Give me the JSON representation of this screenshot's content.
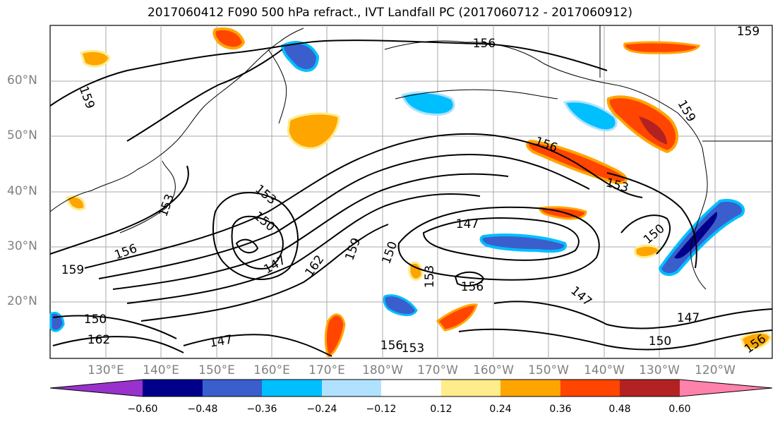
{
  "title": "2017060412 F090 500 hPa refract., IVT Landfall PC (2017060712 - 2017060912)",
  "lat_labels": [
    "60°N",
    "50°N",
    "40°N",
    "30°N",
    "20°N"
  ],
  "lon_labels": [
    "130°E",
    "140°E",
    "150°E",
    "160°E",
    "170°E",
    "180°W",
    "170°W",
    "160°W",
    "150°W",
    "140°W",
    "130°W",
    "120°W"
  ],
  "contour_labels": [
    "159",
    "156",
    "153",
    "150",
    "147",
    "162",
    "159",
    "153",
    "150",
    "147",
    "156",
    "159",
    "156",
    "150",
    "147",
    "153",
    "162",
    "150",
    "156",
    "147",
    "153",
    "156",
    "159",
    "147",
    "150",
    "156",
    "159",
    "153"
  ],
  "colorbar": {
    "tick_labels": [
      "−0.60",
      "−0.48",
      "−0.36",
      "−0.24",
      "−0.12",
      "0.12",
      "0.24",
      "0.36",
      "0.48",
      "0.60"
    ],
    "colors": [
      "#9932CC",
      "#00008B",
      "#3A5FCD",
      "#00BFFF",
      "#B0E2FF",
      "#FFFFFF",
      "#FFEC8B",
      "#FFA500",
      "#FF4500",
      "#B22222",
      "#FF82AB"
    ]
  },
  "map_style": {
    "ocean": "#ffffff",
    "coastline": "#000000",
    "gridlines": "#999999",
    "grid": true
  }
}
